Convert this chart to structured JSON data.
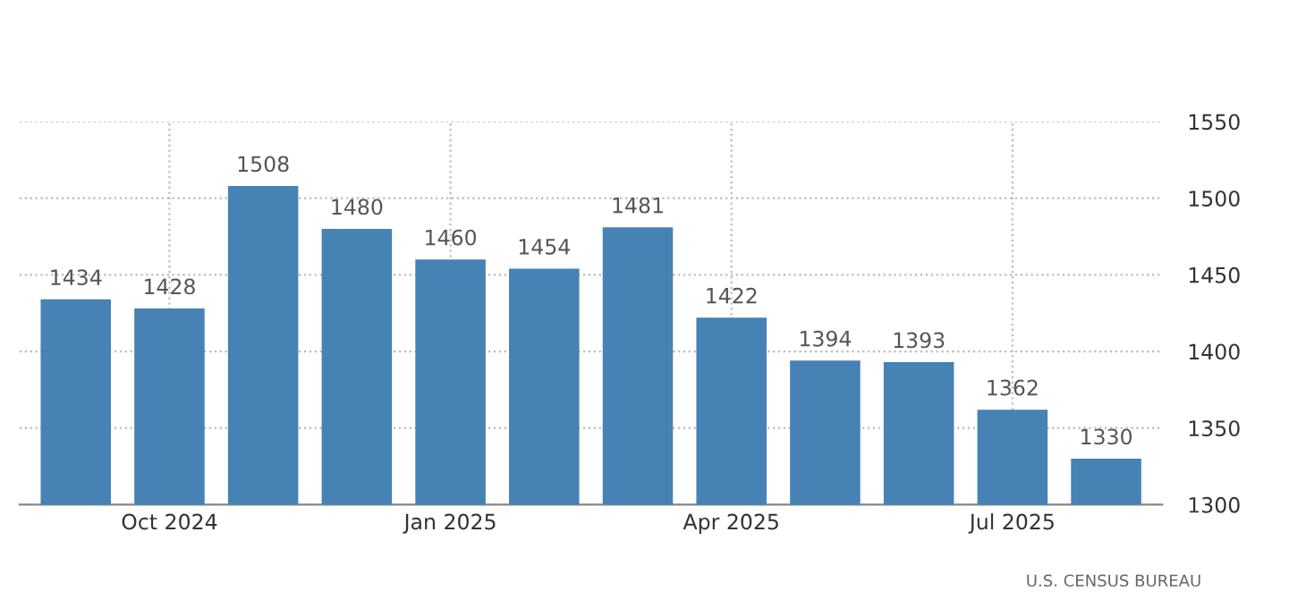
{
  "chart_data": {
    "type": "bar",
    "categories": [
      null,
      "Oct 2024",
      null,
      null,
      "Jan 2025",
      null,
      null,
      "Apr 2025",
      null,
      null,
      "Jul 2025",
      null
    ],
    "values": [
      1434,
      1428,
      1508,
      1480,
      1460,
      1454,
      1481,
      1422,
      1394,
      1393,
      1362,
      1330
    ],
    "color": "#4682b4",
    "ylim": [
      1300,
      1550
    ],
    "yticks": [
      1300,
      1350,
      1400,
      1450,
      1500,
      1550
    ],
    "grid": true,
    "data_labels": true,
    "annotations": [
      "U.S. CENSUS BUREAU"
    ]
  }
}
